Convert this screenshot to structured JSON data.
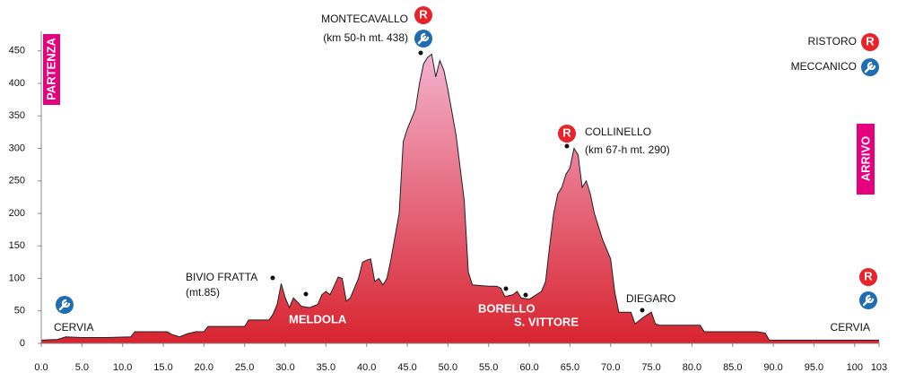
{
  "chart_data": {
    "type": "area",
    "x": [
      0,
      2,
      3,
      5,
      8,
      11,
      11.5,
      15.5,
      16,
      17,
      18,
      19,
      20,
      20.5,
      25,
      25.5,
      28,
      28.5,
      29,
      29.5,
      30,
      30.5,
      31,
      32,
      33,
      34,
      34.5,
      35,
      35.5,
      36,
      36.5,
      37,
      37.5,
      38,
      39,
      39.5,
      40,
      40.5,
      41,
      41.5,
      42,
      42.5,
      43,
      44,
      44.5,
      45,
      46,
      46.5,
      47,
      47.5,
      48,
      48.5,
      49,
      49.5,
      50,
      51,
      52,
      52.5,
      53,
      55,
      56,
      56.5,
      57,
      58,
      58.5,
      59,
      60,
      60.5,
      61.5,
      62,
      62.5,
      63,
      63.5,
      64,
      64.5,
      65,
      65.5,
      66,
      66.5,
      67,
      67.5,
      68,
      69,
      70,
      70.5,
      71,
      72.5,
      73,
      74,
      75,
      75.5,
      76,
      81,
      81.5,
      88,
      89,
      89.5,
      103
    ],
    "values": [
      5,
      6,
      10,
      9,
      9,
      10,
      18,
      18,
      14,
      10,
      15,
      18,
      18,
      26,
      26,
      36,
      36,
      45,
      60,
      92,
      70,
      55,
      70,
      57,
      55,
      60,
      75,
      80,
      75,
      88,
      102,
      100,
      65,
      70,
      100,
      125,
      128,
      130,
      95,
      100,
      90,
      100,
      130,
      200,
      310,
      330,
      360,
      400,
      430,
      440,
      445,
      410,
      435,
      420,
      390,
      320,
      220,
      110,
      90,
      88,
      88,
      85,
      72,
      75,
      80,
      70,
      68,
      72,
      80,
      95,
      150,
      200,
      230,
      240,
      260,
      270,
      300,
      290,
      240,
      250,
      230,
      200,
      160,
      130,
      80,
      48,
      48,
      30,
      40,
      48,
      30,
      28,
      28,
      18,
      18,
      16,
      5,
      5
    ],
    "xlim": [
      0,
      103
    ],
    "ylim": [
      0,
      480
    ],
    "xticks": [
      {
        "value": 0,
        "label": "0.0"
      },
      {
        "value": 5,
        "label": "5.0"
      },
      {
        "value": 10,
        "label": "10.0"
      },
      {
        "value": 15,
        "label": "15.0"
      },
      {
        "value": 20,
        "label": "20.0"
      },
      {
        "value": 25,
        "label": "25.0"
      },
      {
        "value": 30,
        "label": "30.0"
      },
      {
        "value": 35,
        "label": "35.0"
      },
      {
        "value": 40,
        "label": "40.0"
      },
      {
        "value": 45,
        "label": "45.0"
      },
      {
        "value": 50,
        "label": "50.0"
      },
      {
        "value": 55,
        "label": "55.0"
      },
      {
        "value": 60,
        "label": "60.0"
      },
      {
        "value": 65,
        "label": "65.0"
      },
      {
        "value": 70,
        "label": "70.0"
      },
      {
        "value": 75,
        "label": "75.0"
      },
      {
        "value": 80,
        "label": "80.0"
      },
      {
        "value": 85,
        "label": "85.0"
      },
      {
        "value": 90,
        "label": "90.0"
      },
      {
        "value": 95,
        "label": "95.0"
      },
      100,
      103
    ],
    "yticks": [
      0,
      50,
      100,
      150,
      200,
      250,
      300,
      350,
      400,
      450
    ],
    "colors": {
      "top": "#f4b3d0",
      "bottom": "#d8242f"
    },
    "start_label": "PARTENZA",
    "finish_label": "ARRIVO",
    "annotations": {
      "montecavallo": [
        "MONTECAVALLO",
        "(km 50-h mt. 438)"
      ],
      "collinello": [
        "COLLINELLO",
        "(km 67-h mt. 290)"
      ],
      "bivio": [
        "BIVIO FRATTA",
        "(mt.85)"
      ],
      "diegaro": "DIEGARO",
      "meldola": "MELDOLA",
      "borello": "BORELLO",
      "vittore": "S. VITTORE",
      "cervia_start": "CERVIA",
      "cervia_end": "CERVIA"
    },
    "legend": {
      "ristoro": "RISTORO",
      "ristoro_symbol": "R",
      "meccanico": "MECCANICO"
    }
  }
}
